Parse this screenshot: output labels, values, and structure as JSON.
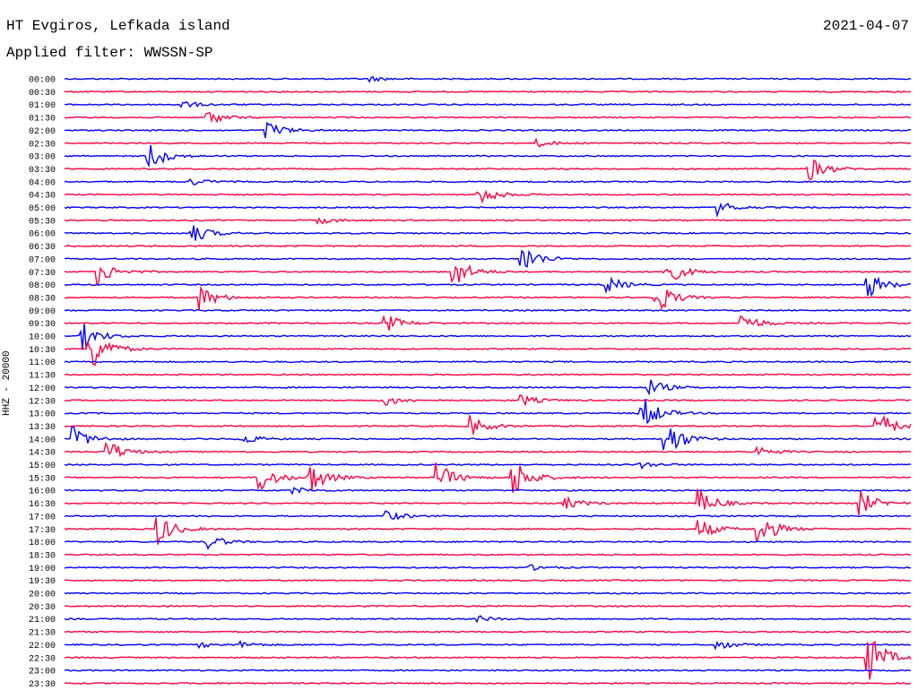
{
  "header": {
    "station": "HT Evgiros, Lefkada island",
    "date": "2021-04-07",
    "filter": "Applied filter: WWSSN-SP",
    "channel": "HHZ - 20000"
  },
  "colors": {
    "even": "#0000ff",
    "odd": "#ff0040"
  },
  "chart_data": {
    "type": "helicorder",
    "tick_labels": [
      "00:00",
      "00:30",
      "01:00",
      "01:30",
      "02:00",
      "02:30",
      "03:00",
      "03:30",
      "04:00",
      "04:30",
      "05:00",
      "05:30",
      "06:00",
      "06:30",
      "07:00",
      "07:30",
      "08:00",
      "08:30",
      "09:00",
      "09:30",
      "10:00",
      "10:30",
      "11:00",
      "11:30",
      "12:00",
      "12:30",
      "13:00",
      "13:30",
      "14:00",
      "14:30",
      "15:00",
      "15:30",
      "16:00",
      "16:30",
      "17:00",
      "17:30",
      "18:00",
      "18:30",
      "19:00",
      "19:30",
      "20:00",
      "20:30",
      "21:00",
      "21:30",
      "22:00",
      "22:30",
      "23:00",
      "23:30"
    ],
    "events": [
      {
        "row": 0,
        "t": 0.36,
        "amp": 3
      },
      {
        "row": 2,
        "t": 0.14,
        "amp": 4
      },
      {
        "row": 3,
        "t": 0.17,
        "amp": 8
      },
      {
        "row": 4,
        "t": 0.24,
        "amp": 10
      },
      {
        "row": 5,
        "t": 0.56,
        "amp": 4
      },
      {
        "row": 6,
        "t": 0.1,
        "amp": 16
      },
      {
        "row": 7,
        "t": 0.88,
        "amp": 14
      },
      {
        "row": 8,
        "t": 0.15,
        "amp": 4
      },
      {
        "row": 9,
        "t": 0.49,
        "amp": 12
      },
      {
        "row": 10,
        "t": 0.77,
        "amp": 9
      },
      {
        "row": 11,
        "t": 0.3,
        "amp": 4
      },
      {
        "row": 12,
        "t": 0.15,
        "amp": 12
      },
      {
        "row": 14,
        "t": 0.54,
        "amp": 18
      },
      {
        "row": 15,
        "t": 0.04,
        "amp": 14
      },
      {
        "row": 15,
        "t": 0.46,
        "amp": 18
      },
      {
        "row": 15,
        "t": 0.71,
        "amp": 16
      },
      {
        "row": 16,
        "t": 0.64,
        "amp": 10
      },
      {
        "row": 16,
        "t": 0.95,
        "amp": 14
      },
      {
        "row": 17,
        "t": 0.16,
        "amp": 14
      },
      {
        "row": 17,
        "t": 0.7,
        "amp": 18
      },
      {
        "row": 19,
        "t": 0.38,
        "amp": 10
      },
      {
        "row": 19,
        "t": 0.8,
        "amp": 12
      },
      {
        "row": 20,
        "t": 0.02,
        "amp": 16
      },
      {
        "row": 21,
        "t": 0.03,
        "amp": 30
      },
      {
        "row": 24,
        "t": 0.69,
        "amp": 10
      },
      {
        "row": 25,
        "t": 0.38,
        "amp": 6
      },
      {
        "row": 25,
        "t": 0.54,
        "amp": 6
      },
      {
        "row": 26,
        "t": 0.68,
        "amp": 24
      },
      {
        "row": 27,
        "t": 0.48,
        "amp": 12
      },
      {
        "row": 27,
        "t": 0.96,
        "amp": 18
      },
      {
        "row": 28,
        "t": 0.01,
        "amp": 14
      },
      {
        "row": 28,
        "t": 0.21,
        "amp": 6
      },
      {
        "row": 28,
        "t": 0.71,
        "amp": 24
      },
      {
        "row": 29,
        "t": 0.05,
        "amp": 14
      },
      {
        "row": 29,
        "t": 0.82,
        "amp": 6
      },
      {
        "row": 30,
        "t": 0.68,
        "amp": 4
      },
      {
        "row": 31,
        "t": 0.23,
        "amp": 18
      },
      {
        "row": 31,
        "t": 0.29,
        "amp": 18
      },
      {
        "row": 31,
        "t": 0.44,
        "amp": 18
      },
      {
        "row": 31,
        "t": 0.53,
        "amp": 24
      },
      {
        "row": 32,
        "t": 0.27,
        "amp": 4
      },
      {
        "row": 33,
        "t": 0.59,
        "amp": 8
      },
      {
        "row": 33,
        "t": 0.75,
        "amp": 16
      },
      {
        "row": 33,
        "t": 0.94,
        "amp": 14
      },
      {
        "row": 34,
        "t": 0.38,
        "amp": 6
      },
      {
        "row": 35,
        "t": 0.11,
        "amp": 18
      },
      {
        "row": 35,
        "t": 0.75,
        "amp": 12
      },
      {
        "row": 35,
        "t": 0.82,
        "amp": 20
      },
      {
        "row": 36,
        "t": 0.17,
        "amp": 8
      },
      {
        "row": 38,
        "t": 0.55,
        "amp": 3
      },
      {
        "row": 42,
        "t": 0.49,
        "amp": 3
      },
      {
        "row": 44,
        "t": 0.16,
        "amp": 3
      },
      {
        "row": 44,
        "t": 0.21,
        "amp": 3
      },
      {
        "row": 44,
        "t": 0.77,
        "amp": 6
      },
      {
        "row": 45,
        "t": 0.95,
        "amp": 28
      }
    ]
  }
}
